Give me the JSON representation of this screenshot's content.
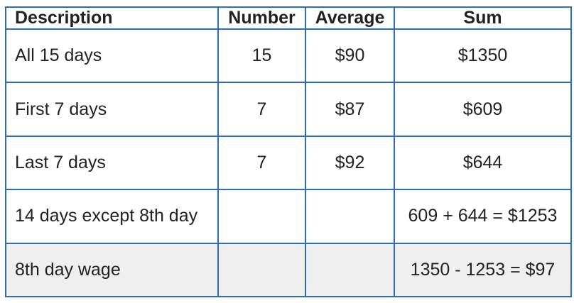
{
  "table": {
    "header": [
      "Description",
      "Number",
      "Average",
      "Sum"
    ],
    "rows": [
      {
        "description": "All 15 days",
        "number": "15",
        "average": "$90",
        "sum": "$1350"
      },
      {
        "description": "First 7 days",
        "number": "7",
        "average": "$87",
        "sum": "$609"
      },
      {
        "description": "Last 7 days",
        "number": "7",
        "average": "$92",
        "sum": "$644"
      },
      {
        "description": "14 days except 8th day",
        "sum": "609 + 644 = $1253"
      },
      {
        "description": "8th day wage",
        "sum": "1350 - 1253 = $97"
      }
    ]
  }
}
